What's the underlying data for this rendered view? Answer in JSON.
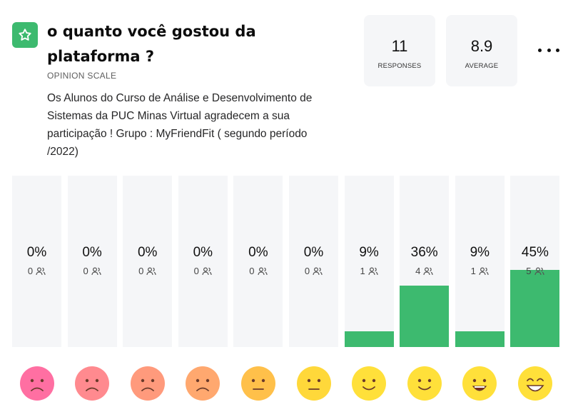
{
  "question": {
    "icon": "star-icon",
    "icon_color": "#3dba6f",
    "title": "o quanto você gostou da plataforma ?",
    "type_label": "OPINION SCALE",
    "description": "Os Alunos do Curso de Análise e Desenvolvimento de Sistemas da PUC Minas Virtual agradecem a sua participação ! Grupo : MyFriendFit ( segundo período /2022)"
  },
  "stats": {
    "responses_value": "11",
    "responses_label": "RESPONSES",
    "average_value": "8.9",
    "average_label": "AVERAGE"
  },
  "menu_icon": "more-horizontal-icon",
  "colors": {
    "bar": "#3dba6f",
    "column_bg": "#f5f6f8"
  },
  "chart_data": {
    "type": "bar",
    "categories": [
      "1",
      "2",
      "3",
      "4",
      "5",
      "6",
      "7",
      "8",
      "9",
      "10"
    ],
    "percent_labels": [
      "0%",
      "0%",
      "0%",
      "0%",
      "0%",
      "0%",
      "9%",
      "36%",
      "9%",
      "45%"
    ],
    "values": [
      0,
      0,
      0,
      0,
      0,
      0,
      9,
      36,
      9,
      45
    ],
    "counts": [
      0,
      0,
      0,
      0,
      0,
      0,
      1,
      4,
      1,
      5
    ],
    "ylim": [
      0,
      100
    ]
  },
  "faces": [
    {
      "icon": "very-sad-face-icon",
      "color": "#ff6fa2",
      "mouth": "frown"
    },
    {
      "icon": "sad-face-icon",
      "color": "#ff8a8f",
      "mouth": "frown"
    },
    {
      "icon": "unhappy-face-icon",
      "color": "#ff9a7c",
      "mouth": "frown"
    },
    {
      "icon": "slightly-unhappy-face-icon",
      "color": "#ffa86f",
      "mouth": "frown"
    },
    {
      "icon": "neutral-face-icon",
      "color": "#ffc04a",
      "mouth": "flat"
    },
    {
      "icon": "neutral-face-icon",
      "color": "#ffd83a",
      "mouth": "flat"
    },
    {
      "icon": "slightly-happy-face-icon",
      "color": "#ffe03a",
      "mouth": "smile"
    },
    {
      "icon": "happy-face-icon",
      "color": "#ffe03a",
      "mouth": "smile"
    },
    {
      "icon": "grinning-face-icon",
      "color": "#ffe03a",
      "mouth": "open"
    },
    {
      "icon": "laughing-face-icon",
      "color": "#ffe03a",
      "mouth": "grin"
    }
  ]
}
